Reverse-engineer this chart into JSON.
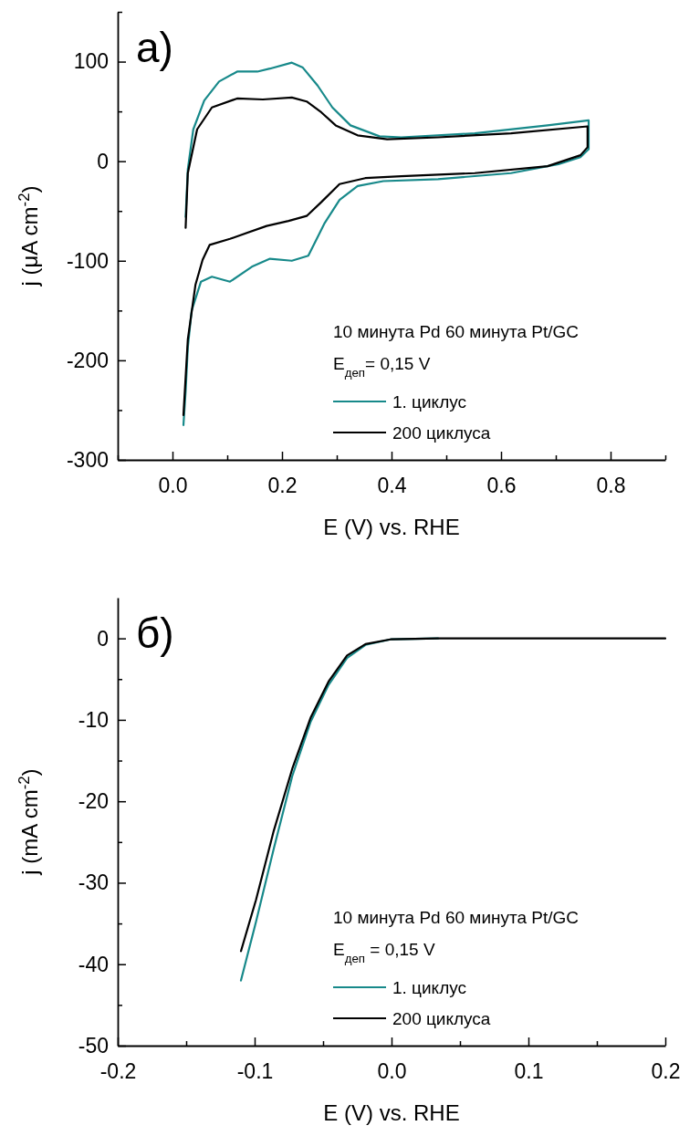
{
  "chart_data": [
    {
      "type": "line",
      "xlabel": "E (V) vs. RHE",
      "ylabel": "j (μA cm$^{-2}$)",
      "xlim": [
        -0.1,
        0.9
      ],
      "ylim": [
        -300,
        150
      ],
      "xticks": [
        {
          "value": -0.1,
          "label": null
        },
        {
          "value": 0,
          "label": "0.0"
        },
        {
          "value": 0.1,
          "label": null
        },
        {
          "value": 0.2,
          "label": "0.2"
        },
        {
          "value": 0.3,
          "label": null
        },
        {
          "value": 0.4,
          "label": "0.4"
        },
        {
          "value": 0.5,
          "label": null
        },
        {
          "value": 0.6,
          "label": "0.6"
        },
        {
          "value": 0.7,
          "label": null
        },
        {
          "value": 0.8,
          "label": "0.8"
        },
        {
          "value": 0.9,
          "label": null
        }
      ],
      "yticks": [
        -300,
        {
          "value": -250,
          "label": null
        },
        -200,
        {
          "value": -150,
          "label": null
        },
        -100,
        {
          "value": -50,
          "label": null
        },
        0,
        {
          "value": 50,
          "label": null
        },
        100,
        {
          "value": 150,
          "label": null
        }
      ],
      "grid": false,
      "legend": "bottom right",
      "marker": "none",
      "line_style": "solid",
      "annotations": [
        "a)",
        "10 минута Pd 60 минута Pt/GC",
        "E$_{деп}$= 0,15 V"
      ],
      "series": [
        {
          "name": "1. циклус",
          "color": "#17898a",
          "x": [
            0.024,
            0.028,
            0.038,
            0.058,
            0.085,
            0.118,
            0.155,
            0.178,
            0.218,
            0.238,
            0.265,
            0.292,
            0.325,
            0.378,
            0.418,
            0.552,
            0.685,
            0.76,
            0.76,
            0.745,
            0.705,
            0.618,
            0.485,
            0.385,
            0.338,
            0.305,
            0.278,
            0.248,
            0.218,
            0.178,
            0.145,
            0.105,
            0.072,
            0.052,
            0.035,
            0.028,
            0.024,
            0.02
          ],
          "values": [
            -56,
            -8,
            32,
            61,
            80,
            90,
            90,
            93,
            99,
            94,
            76,
            54,
            36,
            25,
            24,
            28,
            36,
            41,
            12,
            4,
            -3,
            -12,
            -18,
            -20,
            -25,
            -39,
            -62,
            -95,
            -100,
            -98,
            -106,
            -121,
            -116,
            -121,
            -150,
            -187,
            -231,
            -265
          ]
        },
        {
          "name": "200 циклуса",
          "color": "#000000",
          "x": [
            0.024,
            0.028,
            0.045,
            0.072,
            0.118,
            0.165,
            0.218,
            0.245,
            0.272,
            0.298,
            0.338,
            0.392,
            0.485,
            0.618,
            0.758,
            0.758,
            0.745,
            0.685,
            0.552,
            0.418,
            0.352,
            0.305,
            0.272,
            0.245,
            0.212,
            0.172,
            0.105,
            0.068,
            0.055,
            0.042,
            0.028,
            0.02
          ],
          "values": [
            -67,
            -12,
            32,
            54,
            63,
            62,
            64,
            60,
            49,
            36,
            26,
            22,
            24,
            28,
            35,
            14,
            6,
            -5,
            -12,
            -15,
            -17,
            -23,
            -41,
            -55,
            -60,
            -65,
            -78,
            -84,
            -99,
            -124,
            -179,
            -255
          ]
        }
      ]
    },
    {
      "type": "line",
      "xlabel": "E (V) vs. RHE",
      "ylabel": "j (mA cm$^{-2}$)",
      "xlim": [
        -0.2,
        0.2
      ],
      "ylim": [
        -50,
        5
      ],
      "xticks": [
        -0.2,
        {
          "value": -0.15,
          "label": null
        },
        -0.1,
        {
          "value": -0.05,
          "label": null
        },
        {
          "value": 0,
          "label": "0.0"
        },
        {
          "value": 0.05,
          "label": null
        },
        0.1,
        {
          "value": 0.15,
          "label": null
        },
        0.2
      ],
      "yticks": [
        -50,
        {
          "value": -45,
          "label": null
        },
        -40,
        {
          "value": -35,
          "label": null
        },
        -30,
        {
          "value": -25,
          "label": null
        },
        -20,
        {
          "value": -15,
          "label": null
        },
        -10,
        {
          "value": -5,
          "label": null
        },
        0
      ],
      "grid": false,
      "legend": "bottom right",
      "marker": "none",
      "line_style": "solid",
      "annotations": [
        "б)",
        "10 минута Pd 60 минута Pt/GC",
        "E$_{деп}$ = 0,15 V"
      ],
      "series": [
        {
          "name": "1. циклус",
          "color": "#17898a",
          "x": [
            -0.11,
            -0.099,
            -0.086,
            -0.0725,
            -0.059,
            -0.046,
            -0.0325,
            -0.019,
            0,
            0.034
          ],
          "values": [
            -42,
            -34.8,
            -25.8,
            -16.9,
            -10.2,
            -5.7,
            -2.4,
            -0.8,
            -0.1,
            0
          ]
        },
        {
          "name": "200 циклуса",
          "color": "#000000",
          "x": [
            -0.11,
            -0.099,
            -0.086,
            -0.0725,
            -0.059,
            -0.046,
            -0.0325,
            -0.019,
            0,
            0.034,
            0.1,
            0.2
          ],
          "values": [
            -38.4,
            -32.1,
            -23.6,
            -16,
            -9.7,
            -5.3,
            -2.1,
            -0.7,
            -0.1,
            0,
            0,
            0
          ]
        }
      ]
    }
  ]
}
